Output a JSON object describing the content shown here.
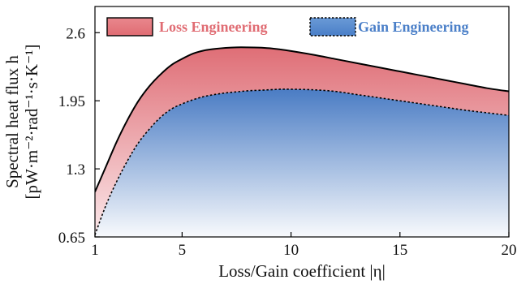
{
  "chart_data": {
    "type": "area",
    "x_ticks": [
      1,
      5,
      10,
      15,
      20
    ],
    "y_ticks": [
      0.65,
      1.3,
      1.95,
      2.6
    ],
    "y_tick_labels": [
      "0.65",
      "1.3",
      "1.95",
      "2.6"
    ],
    "xlim": [
      1,
      20
    ],
    "ylim": [
      0.65,
      2.85
    ],
    "xlabel": "Loss/Gain coefficient |η|",
    "ylabel_line1": "Spectral heat flux h",
    "ylabel_line2": "[pW·m⁻²·rad⁻¹·s·K⁻¹]",
    "grid": false,
    "legend_position": "top",
    "series": [
      {
        "name": "Loss Engineering",
        "color": "#e06c73",
        "line_style": "solid",
        "x": [
          1,
          1.5,
          2,
          2.5,
          3,
          3.5,
          4,
          4.5,
          5,
          5.5,
          6,
          6.5,
          7,
          7.5,
          8,
          8.5,
          9,
          9.5,
          10,
          11,
          12,
          13,
          14,
          15,
          16,
          17,
          18,
          19,
          20
        ],
        "y": [
          1.08,
          1.32,
          1.56,
          1.77,
          1.95,
          2.09,
          2.2,
          2.29,
          2.35,
          2.4,
          2.43,
          2.445,
          2.455,
          2.46,
          2.46,
          2.458,
          2.452,
          2.44,
          2.425,
          2.39,
          2.35,
          2.31,
          2.27,
          2.23,
          2.19,
          2.15,
          2.11,
          2.07,
          2.04
        ]
      },
      {
        "name": "Gain Engineering",
        "color": "#4a7fc8",
        "line_style": "dotted",
        "x": [
          1,
          1.5,
          2,
          2.5,
          3,
          3.5,
          4,
          4.5,
          5,
          5.5,
          6,
          6.5,
          7,
          7.5,
          8,
          8.5,
          9,
          9.5,
          10,
          11,
          12,
          13,
          14,
          15,
          16,
          17,
          18,
          19,
          20
        ],
        "y": [
          0.67,
          0.95,
          1.18,
          1.38,
          1.55,
          1.68,
          1.79,
          1.87,
          1.92,
          1.96,
          1.99,
          2.01,
          2.025,
          2.035,
          2.045,
          2.05,
          2.055,
          2.06,
          2.06,
          2.055,
          2.04,
          2.01,
          1.98,
          1.95,
          1.92,
          1.89,
          1.86,
          1.835,
          1.81
        ]
      }
    ]
  }
}
